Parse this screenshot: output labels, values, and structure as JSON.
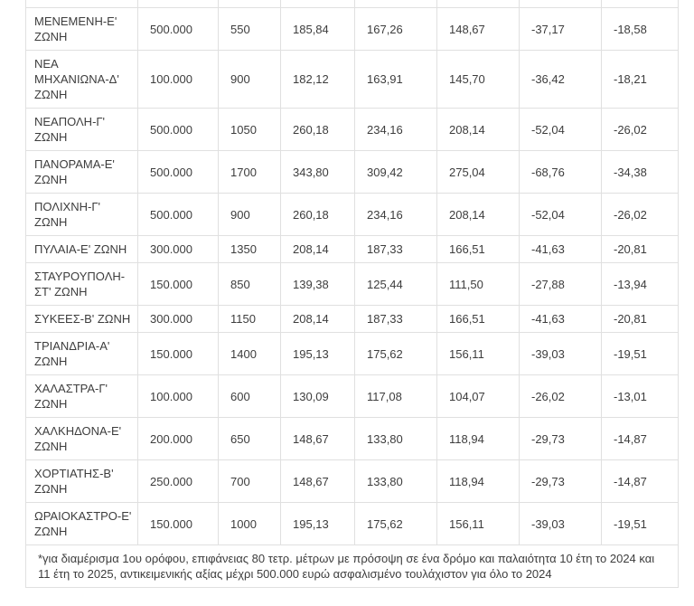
{
  "colors": {
    "text": "#3d3d3d",
    "border": "#e0e0e0",
    "background": "#ffffff"
  },
  "table": {
    "rows": [
      {
        "zone": "ΜΕΝΕΜΕΝΗ-Ε' ΖΩΝΗ",
        "values": [
          "500.000",
          "550",
          "185,84",
          "167,26",
          "148,67",
          "-37,17",
          "-18,58"
        ]
      },
      {
        "zone": "ΝΕΑ ΜΗΧΑΝΙΩΝΑ-Δ' ΖΩΝΗ",
        "values": [
          "100.000",
          "900",
          "182,12",
          "163,91",
          "145,70",
          "-36,42",
          "-18,21"
        ]
      },
      {
        "zone": "ΝΕΑΠΟΛΗ-Γ' ΖΩΝΗ",
        "values": [
          "500.000",
          "1050",
          "260,18",
          "234,16",
          "208,14",
          "-52,04",
          "-26,02"
        ]
      },
      {
        "zone": "ΠΑΝΟΡΑΜΑ-Ε' ΖΩΝΗ",
        "values": [
          "500.000",
          "1700",
          "343,80",
          "309,42",
          "275,04",
          "-68,76",
          "-34,38"
        ]
      },
      {
        "zone": "ΠΟΛΙΧΝΗ-Γ' ΖΩΝΗ",
        "values": [
          "500.000",
          "900",
          "260,18",
          "234,16",
          "208,14",
          "-52,04",
          "-26,02"
        ]
      },
      {
        "zone": "ΠΥΛΑΙΑ-Ε' ΖΩΝΗ",
        "values": [
          "300.000",
          "1350",
          "208,14",
          "187,33",
          "166,51",
          "-41,63",
          "-20,81"
        ]
      },
      {
        "zone": "ΣΤΑΥΡΟΥΠΟΛΗ-ΣΤ' ΖΩΝΗ",
        "values": [
          "150.000",
          "850",
          "139,38",
          "125,44",
          "111,50",
          "-27,88",
          "-13,94"
        ]
      },
      {
        "zone": "ΣΥΚΕΕΣ-Β' ΖΩΝΗ",
        "values": [
          "300.000",
          "1150",
          "208,14",
          "187,33",
          "166,51",
          "-41,63",
          "-20,81"
        ]
      },
      {
        "zone": "ΤΡΙΑΝΔΡΙΑ-Α' ΖΩΝΗ",
        "values": [
          "150.000",
          "1400",
          "195,13",
          "175,62",
          "156,11",
          "-39,03",
          "-19,51"
        ]
      },
      {
        "zone": "ΧΑΛΑΣΤΡΑ-Γ' ΖΩΝΗ",
        "values": [
          "100.000",
          "600",
          "130,09",
          "117,08",
          "104,07",
          "-26,02",
          "-13,01"
        ]
      },
      {
        "zone": "ΧΑΛΚΗΔΟΝΑ-Ε' ΖΩΝΗ",
        "values": [
          "200.000",
          "650",
          "148,67",
          "133,80",
          "118,94",
          "-29,73",
          "-14,87"
        ]
      },
      {
        "zone": "ΧΟΡΤΙΑΤΗΣ-Β' ΖΩΝΗ",
        "values": [
          "250.000",
          "700",
          "148,67",
          "133,80",
          "118,94",
          "-29,73",
          "-14,87"
        ]
      },
      {
        "zone": "ΩΡΑΙΟΚΑΣΤΡΟ-Ε' ΖΩΝΗ",
        "values": [
          "150.000",
          "1000",
          "195,13",
          "175,62",
          "156,11",
          "-39,03",
          "-19,51"
        ]
      }
    ]
  },
  "footnote": "*για διαμέρισμα 1ου ορόφου, επιφάνειας 80 τετρ. μέτρων με πρόσοψη σε ένα δρόμο και παλαιότητα 10 έτη το 2024 και 11 έτη το 2025, αντικειμενικής αξίας μέχρι 500.000 ευρώ ασφαλισμένο τουλάχιστον για όλο το 2024"
}
